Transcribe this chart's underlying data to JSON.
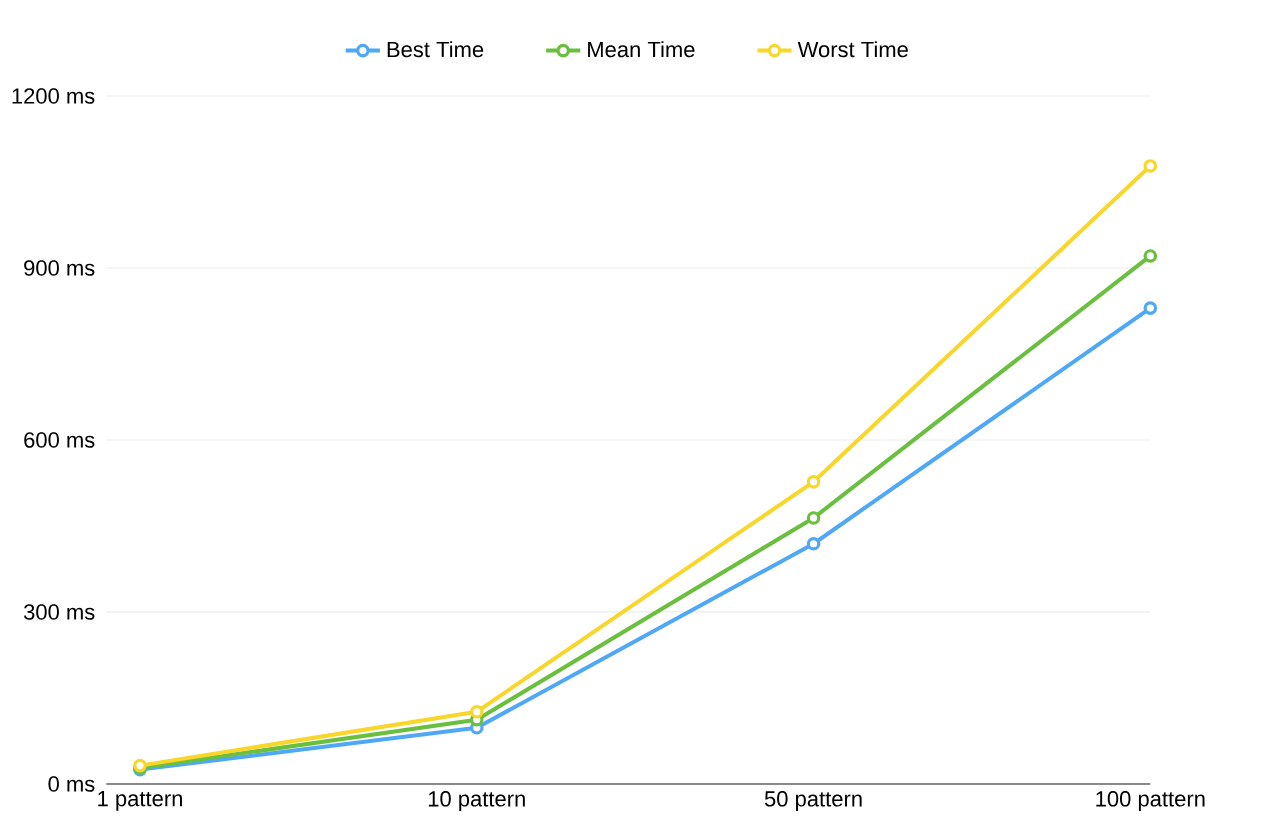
{
  "chart_data": {
    "type": "line",
    "categories": [
      "1 pattern",
      "10 pattern",
      "50 pattern",
      "100 pattern"
    ],
    "series": [
      {
        "name": "Best Time",
        "color": "#4fa8f5",
        "values": [
          25,
          98,
          419,
          830
        ]
      },
      {
        "name": "Mean Time",
        "color": "#6abf3f",
        "values": [
          28,
          112,
          464,
          921
        ]
      },
      {
        "name": "Worst Time",
        "color": "#f8d62a",
        "values": [
          32,
          126,
          527,
          1078
        ]
      }
    ],
    "ylim": [
      0,
      1200
    ],
    "yticks": [
      {
        "value": 0,
        "label": "0 ms"
      },
      {
        "value": 300,
        "label": "300 ms"
      },
      {
        "value": 600,
        "label": "600 ms"
      },
      {
        "value": 900,
        "label": "900 ms"
      },
      {
        "value": 1200,
        "label": "1200 ms"
      }
    ],
    "grid": "y",
    "legend": "top",
    "marker": "circle",
    "line_style": "solid"
  }
}
